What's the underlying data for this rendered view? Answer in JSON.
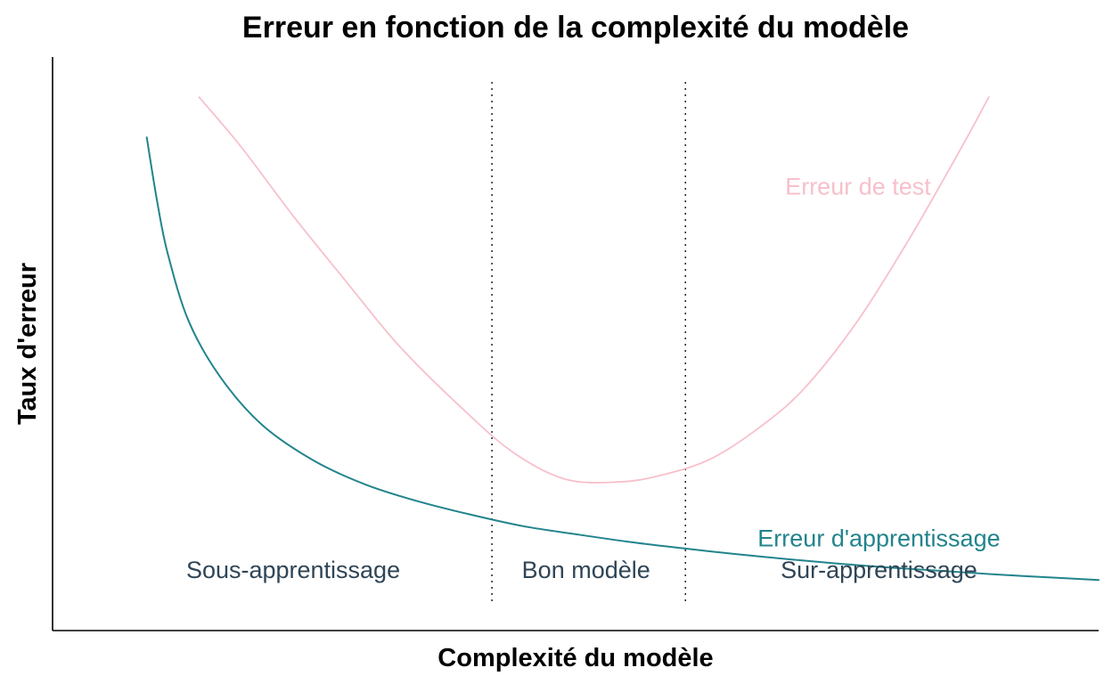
{
  "chart_data": {
    "type": "line",
    "title": "Erreur en fonction de la complexité du modèle",
    "xlabel": "Complexité du modèle",
    "ylabel": "Taux d'erreur",
    "xlim": [
      0,
      10
    ],
    "ylim": [
      0,
      10
    ],
    "grid": false,
    "axis_ticks": false,
    "series": [
      {
        "name": "Erreur de test",
        "color": "#f7c0cb",
        "x": [
          1.4,
          1.8,
          2.3,
          2.8,
          3.3,
          3.9,
          4.4,
          4.9,
          5.4,
          5.8,
          6.3,
          6.8,
          7.2,
          7.7,
          8.2,
          8.7,
          8.95
        ],
        "y": [
          9.3,
          8.44,
          7.23,
          6.1,
          4.99,
          3.9,
          3.11,
          2.64,
          2.59,
          2.7,
          3.0,
          3.6,
          4.25,
          5.41,
          6.86,
          8.46,
          9.3
        ]
      },
      {
        "name": "Erreur d'apprentissage",
        "color": "#22848c",
        "x": [
          0.9,
          1.0,
          1.1,
          1.3,
          1.6,
          2.0,
          2.5,
          3.0,
          3.5,
          4.0,
          4.5,
          5.0,
          5.5,
          6.0,
          6.5,
          7.0,
          7.5,
          8.0,
          8.5,
          9.0,
          9.5,
          10.0
        ],
        "y": [
          8.6,
          7.48,
          6.58,
          5.4,
          4.43,
          3.59,
          2.96,
          2.54,
          2.25,
          2.02,
          1.82,
          1.68,
          1.55,
          1.44,
          1.34,
          1.25,
          1.17,
          1.1,
          1.04,
          0.98,
          0.93,
          0.88
        ]
      }
    ],
    "vertical_lines": [
      4.2,
      6.05
    ],
    "regions": [
      {
        "label": "Sous-apprentissage",
        "x": 2.3
      },
      {
        "label": "Bon modèle",
        "x": 5.1
      },
      {
        "label": "Sur-apprentissage",
        "x": 7.9
      }
    ],
    "annotations": [
      {
        "text": "Erreur de test",
        "x": 7.7,
        "y": 7.6,
        "color": "#f7c0cb"
      },
      {
        "text": "Erreur d'apprentissage",
        "x": 7.9,
        "y": 1.47,
        "color": "#22848c"
      }
    ],
    "region_label_y": 0.2
  }
}
